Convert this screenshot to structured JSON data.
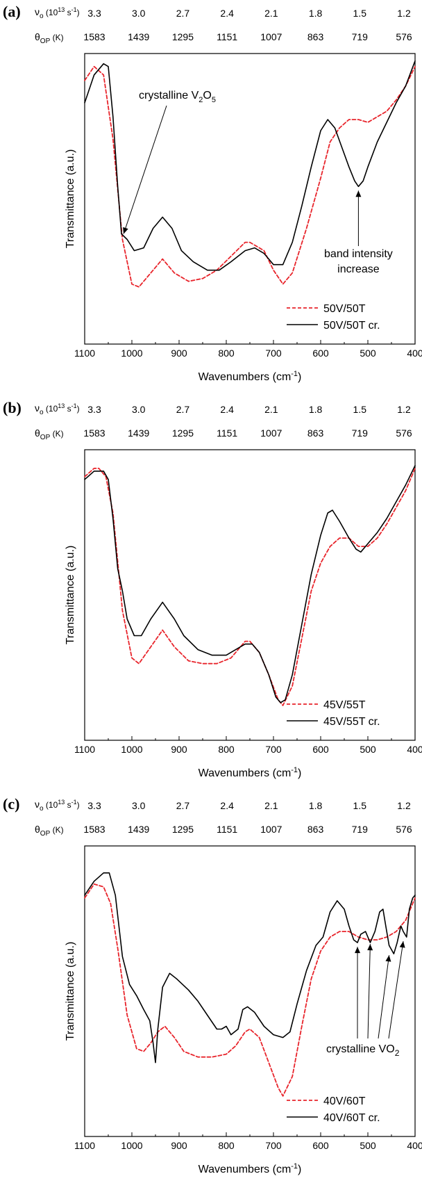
{
  "chart_data": [
    {
      "panel_label": "(a)",
      "type": "line",
      "top_axis_1": {
        "label_main": "ν",
        "label_sub": "o",
        "label_unit_pre": "(10",
        "label_unit_sup": "13",
        "label_unit_post": " s",
        "label_unit_sup2": "-1",
        "label_unit_end": ")",
        "ticks": [
          "3.3",
          "3.0",
          "2.7",
          "2.4",
          "2.1",
          "1.8",
          "1.5",
          "1.2"
        ]
      },
      "top_axis_2": {
        "label_main": "θ",
        "label_sub": "OP",
        "label_unit": "(K)",
        "ticks": [
          "1583",
          "1439",
          "1295",
          "1151",
          "1007",
          "863",
          "719",
          "576"
        ]
      },
      "xlabel": "Wavenumbers (cm",
      "xlabel_sup": "-1",
      "xlabel_end": ")",
      "ylabel": "Transmittance (a.u.)",
      "xlim": [
        1100,
        400
      ],
      "x_ticks": [
        "1100",
        "1000",
        "900",
        "800",
        "700",
        "600",
        "500",
        "400"
      ],
      "ylim": [
        0,
        1
      ],
      "series": [
        {
          "name": "50V/50T",
          "style": "dashed",
          "color": "#e8242b",
          "x": [
            1100,
            1080,
            1060,
            1040,
            1020,
            1000,
            985,
            960,
            935,
            910,
            880,
            850,
            820,
            790,
            760,
            750,
            720,
            700,
            680,
            660,
            630,
            600,
            580,
            560,
            540,
            520,
            500,
            480,
            460,
            440,
            420,
            400
          ],
          "y": [
            0.93,
            0.98,
            0.95,
            0.72,
            0.36,
            0.2,
            0.19,
            0.24,
            0.29,
            0.24,
            0.21,
            0.22,
            0.25,
            0.3,
            0.35,
            0.35,
            0.32,
            0.25,
            0.2,
            0.24,
            0.4,
            0.58,
            0.71,
            0.76,
            0.79,
            0.79,
            0.78,
            0.8,
            0.82,
            0.86,
            0.91,
            0.98
          ]
        },
        {
          "name": "50V/50T cr.",
          "style": "solid",
          "color": "#000000",
          "x": [
            1100,
            1080,
            1060,
            1050,
            1040,
            1030,
            1022,
            1010,
            995,
            975,
            955,
            935,
            915,
            895,
            870,
            840,
            815,
            790,
            760,
            740,
            720,
            700,
            680,
            660,
            640,
            620,
            600,
            585,
            570,
            555,
            540,
            528,
            520,
            510,
            500,
            480,
            460,
            440,
            420,
            400
          ],
          "y": [
            0.85,
            0.95,
            0.99,
            0.98,
            0.8,
            0.55,
            0.38,
            0.36,
            0.32,
            0.33,
            0.4,
            0.44,
            0.4,
            0.32,
            0.28,
            0.25,
            0.25,
            0.28,
            0.32,
            0.33,
            0.31,
            0.27,
            0.27,
            0.35,
            0.48,
            0.62,
            0.75,
            0.79,
            0.76,
            0.69,
            0.62,
            0.57,
            0.55,
            0.57,
            0.62,
            0.71,
            0.78,
            0.85,
            0.91,
            1.0
          ]
        }
      ],
      "legend_position": "bottom-right",
      "annotations": [
        {
          "text": "crystalline V",
          "sub": "2",
          "text2": "O",
          "sub2": "5"
        },
        {
          "text": "band intensity",
          "text2": "increase"
        }
      ]
    },
    {
      "panel_label": "(b)",
      "type": "line",
      "top_axis_1": {
        "label_main": "ν",
        "label_sub": "o",
        "label_unit_pre": "(10",
        "label_unit_sup": "13",
        "label_unit_post": " s",
        "label_unit_sup2": "-1",
        "label_unit_end": ")",
        "ticks": [
          "3.3",
          "3.0",
          "2.7",
          "2.4",
          "2.1",
          "1.8",
          "1.5",
          "1.2"
        ]
      },
      "top_axis_2": {
        "label_main": "θ",
        "label_sub": "OP",
        "label_unit": "(K)",
        "ticks": [
          "1583",
          "1439",
          "1295",
          "1151",
          "1007",
          "863",
          "719",
          "576"
        ]
      },
      "xlabel": "Wavenumbers (cm",
      "xlabel_sup": "-1",
      "xlabel_end": ")",
      "ylabel": "Transmittance (a.u.)",
      "xlim": [
        1100,
        400
      ],
      "x_ticks": [
        "1100",
        "1000",
        "900",
        "800",
        "700",
        "600",
        "500",
        "400"
      ],
      "ylim": [
        0,
        1
      ],
      "series": [
        {
          "name": "45V/55T",
          "style": "dashed",
          "color": "#e8242b",
          "x": [
            1100,
            1080,
            1070,
            1055,
            1040,
            1020,
            1000,
            985,
            960,
            935,
            910,
            880,
            850,
            820,
            790,
            760,
            750,
            730,
            710,
            690,
            680,
            660,
            640,
            620,
            600,
            580,
            560,
            540,
            520,
            500,
            480,
            460,
            440,
            420,
            400
          ],
          "y": [
            0.93,
            0.96,
            0.96,
            0.93,
            0.8,
            0.45,
            0.28,
            0.26,
            0.32,
            0.38,
            0.32,
            0.27,
            0.26,
            0.26,
            0.28,
            0.34,
            0.34,
            0.3,
            0.22,
            0.13,
            0.11,
            0.18,
            0.35,
            0.52,
            0.62,
            0.68,
            0.71,
            0.71,
            0.68,
            0.68,
            0.71,
            0.76,
            0.82,
            0.88,
            0.96
          ]
        },
        {
          "name": "45V/55T cr.",
          "style": "solid",
          "color": "#000000",
          "x": [
            1100,
            1080,
            1060,
            1050,
            1040,
            1030,
            1020,
            1010,
            995,
            980,
            960,
            935,
            910,
            890,
            860,
            830,
            800,
            780,
            760,
            745,
            730,
            710,
            695,
            685,
            675,
            660,
            640,
            620,
            600,
            585,
            575,
            560,
            540,
            525,
            515,
            500,
            480,
            460,
            440,
            420,
            400
          ],
          "y": [
            0.92,
            0.95,
            0.95,
            0.92,
            0.78,
            0.6,
            0.52,
            0.42,
            0.36,
            0.36,
            0.42,
            0.48,
            0.42,
            0.36,
            0.31,
            0.29,
            0.29,
            0.31,
            0.33,
            0.33,
            0.3,
            0.22,
            0.14,
            0.12,
            0.13,
            0.22,
            0.4,
            0.58,
            0.72,
            0.8,
            0.81,
            0.77,
            0.71,
            0.67,
            0.66,
            0.69,
            0.73,
            0.78,
            0.84,
            0.9,
            0.97
          ]
        }
      ],
      "legend_position": "bottom-right",
      "annotations": []
    },
    {
      "panel_label": "(c)",
      "type": "line",
      "top_axis_1": {
        "label_main": "ν",
        "label_sub": "o",
        "label_unit_pre": "(10",
        "label_unit_sup": "13",
        "label_unit_post": " s",
        "label_unit_sup2": "-1",
        "label_unit_end": ")",
        "ticks": [
          "3.3",
          "3.0",
          "2.7",
          "2.4",
          "2.1",
          "1.8",
          "1.5",
          "1.2"
        ]
      },
      "top_axis_2": {
        "label_main": "θ",
        "label_sub": "OP",
        "label_unit": "(K)",
        "ticks": [
          "1583",
          "1439",
          "1295",
          "1151",
          "1007",
          "863",
          "719",
          "576"
        ]
      },
      "xlabel": "Wavenumbers (cm",
      "xlabel_sup": "-1",
      "xlabel_end": ")",
      "ylabel": "Transmittance (a.u.)",
      "xlim": [
        1100,
        400
      ],
      "x_ticks": [
        "1100",
        "1000",
        "900",
        "800",
        "700",
        "600",
        "500",
        "400"
      ],
      "ylim": [
        0,
        1
      ],
      "series": [
        {
          "name": "40V/60T",
          "style": "dashed",
          "color": "#e8242b",
          "x": [
            1100,
            1080,
            1060,
            1045,
            1030,
            1010,
            990,
            975,
            960,
            945,
            930,
            910,
            890,
            860,
            830,
            800,
            780,
            760,
            750,
            730,
            710,
            690,
            680,
            660,
            640,
            620,
            600,
            580,
            560,
            540,
            520,
            500,
            480,
            460,
            440,
            420,
            400
          ],
          "y": [
            0.84,
            0.89,
            0.88,
            0.82,
            0.66,
            0.42,
            0.3,
            0.29,
            0.32,
            0.36,
            0.38,
            0.34,
            0.29,
            0.27,
            0.27,
            0.28,
            0.31,
            0.36,
            0.37,
            0.34,
            0.25,
            0.16,
            0.13,
            0.2,
            0.38,
            0.55,
            0.65,
            0.7,
            0.72,
            0.72,
            0.7,
            0.69,
            0.69,
            0.7,
            0.72,
            0.76,
            0.84
          ]
        },
        {
          "name": "40V/60T cr.",
          "style": "solid",
          "color": "#000000",
          "x": [
            1100,
            1080,
            1060,
            1048,
            1035,
            1020,
            1005,
            990,
            975,
            962,
            955,
            950,
            945,
            935,
            920,
            905,
            880,
            860,
            840,
            820,
            810,
            800,
            790,
            775,
            765,
            755,
            740,
            720,
            700,
            680,
            665,
            650,
            630,
            610,
            595,
            580,
            565,
            550,
            540,
            530,
            522,
            515,
            505,
            495,
            485,
            475,
            468,
            462,
            455,
            445,
            438,
            430,
            425,
            418,
            412,
            405,
            400
          ],
          "y": [
            0.85,
            0.9,
            0.93,
            0.93,
            0.85,
            0.63,
            0.53,
            0.49,
            0.44,
            0.4,
            0.32,
            0.25,
            0.37,
            0.52,
            0.57,
            0.55,
            0.51,
            0.47,
            0.42,
            0.37,
            0.37,
            0.38,
            0.35,
            0.37,
            0.44,
            0.45,
            0.43,
            0.38,
            0.35,
            0.34,
            0.36,
            0.46,
            0.58,
            0.67,
            0.7,
            0.79,
            0.83,
            0.8,
            0.74,
            0.69,
            0.68,
            0.71,
            0.72,
            0.68,
            0.72,
            0.79,
            0.8,
            0.74,
            0.67,
            0.64,
            0.68,
            0.74,
            0.72,
            0.7,
            0.8,
            0.84,
            0.85
          ]
        }
      ],
      "legend_position": "bottom-right",
      "annotations": [
        {
          "text": "crystalline VO",
          "sub": "2"
        }
      ]
    }
  ]
}
